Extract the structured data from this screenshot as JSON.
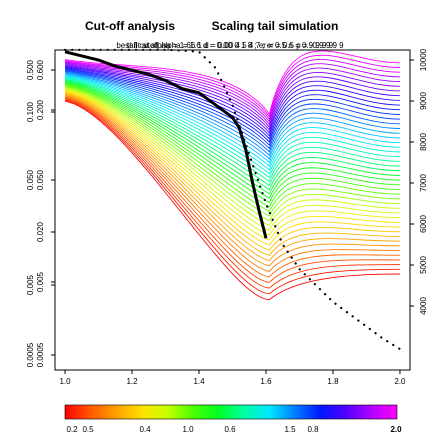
{
  "chart_data": {
    "type": "line",
    "title_left": "Cut-off analysis",
    "title_right": "Scaling tail simulation",
    "subtitle_overlap_1": "best fit at alpha = 1.66 1 d = 0.00 4 5 4 7 ; er = 0.5 p = -0.9 9 9 9",
    "subtitle_overlap_2": "tail cutoff alpha = 1.6 d = 0.00 0 1 8 ; er = 0.5 n = 0.9 9 9 9",
    "x_axis": {
      "range": [
        0.97,
        2.03
      ],
      "ticks": [
        "1.0",
        "1.2",
        "1.4",
        "1.6",
        "1.8",
        "2.0"
      ],
      "tick_values": [
        1.0,
        1.2,
        1.4,
        1.6,
        1.8,
        2.0
      ]
    },
    "left_axis_a": {
      "ticks": [
        "0.600",
        "0.200",
        "0.050",
        "0.020",
        "0.005",
        "0.0005"
      ],
      "tick_values": [
        0.6,
        0.2,
        0.05,
        0.02,
        0.005,
        0.0005
      ]
    },
    "left_axis_b": {
      "ticks": [
        "0.500",
        "0.100",
        "0.050",
        "0.005",
        "0.0005"
      ],
      "tick_values": [
        0.5,
        0.1,
        0.05,
        0.005,
        0.0005
      ]
    },
    "right_axis": {
      "ticks": [
        "4000",
        "5000",
        "6000",
        "7000",
        "8000",
        "9000",
        "10000"
      ],
      "tick_values": [
        4000,
        5000,
        6000,
        7000,
        8000,
        9000,
        10000
      ]
    },
    "family": {
      "count": 46,
      "dip_x": 1.61,
      "left_x": 1.0,
      "right_x": 2.0,
      "description_values": {
        "bottom_left_y": 0.66,
        "top_left_y": 0.53,
        "dip_y_top": 0.2,
        "dip_y_bottom": 0.54,
        "right_y_top": 0.25,
        "right_y_bottom": 0.7
      }
    },
    "best_fit_line": {
      "x": [
        1.0,
        1.05,
        1.1,
        1.15,
        1.2,
        1.25,
        1.3,
        1.35,
        1.4,
        1.45,
        1.5,
        1.52,
        1.54,
        1.56,
        1.58,
        1.6
      ],
      "y": [
        10200,
        10100,
        10000,
        9850,
        9750,
        9650,
        9500,
        9300,
        9200,
        8900,
        8600,
        8350,
        7800,
        7000,
        6300,
        5650
      ]
    },
    "dotted_line": {
      "x": [
        1.0,
        1.1,
        1.2,
        1.3,
        1.35,
        1.4,
        1.45,
        1.5,
        1.55,
        1.6,
        1.65,
        1.7,
        1.75,
        1.8,
        1.85,
        1.9,
        1.95,
        2.0
      ],
      "y": [
        10250,
        10250,
        10250,
        10250,
        10230,
        10200,
        9800,
        8900,
        7700,
        6500,
        5500,
        4900,
        4500,
        4100,
        3800,
        3500,
        3200,
        2950
      ]
    },
    "color_scale": {
      "colors": [
        "#ff0000",
        "#ff5a00",
        "#ffa000",
        "#ffe000",
        "#c8ff00",
        "#4cff00",
        "#00ff24",
        "#00ffa0",
        "#00e8ff",
        "#0080ff",
        "#0018ff",
        "#5000ff",
        "#b000ff",
        "#ff00ff"
      ],
      "labels_upper": [
        "0.2",
        "0.4",
        "0.6",
        "0.8"
      ],
      "labels_lower": [
        "0.5",
        "1.0",
        "1.5",
        "2.0"
      ]
    }
  }
}
